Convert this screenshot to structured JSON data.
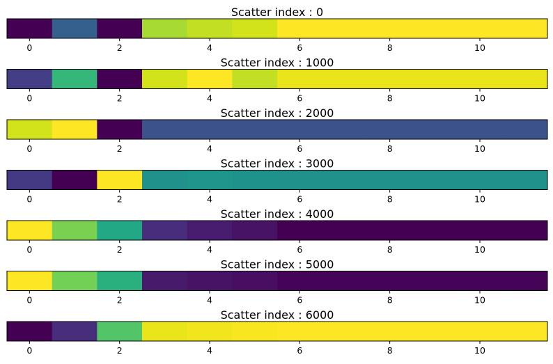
{
  "chart_data": [
    {
      "type": "heatmap",
      "title": "Scatter index : 0",
      "x_ticks": [
        0,
        2,
        4,
        6,
        8,
        10
      ],
      "xlim": [
        -0.5,
        11.5
      ],
      "colors": [
        "#440154",
        "#355f8d",
        "#440154",
        "#a7db34",
        "#c2df23",
        "#d2e21b",
        "#fde725",
        "#fde725",
        "#fde725",
        "#fde725",
        "#fde725",
        "#fde725"
      ]
    },
    {
      "type": "heatmap",
      "title": "Scatter index : 1000",
      "x_ticks": [
        0,
        2,
        4,
        6,
        8,
        10
      ],
      "xlim": [
        -0.5,
        11.5
      ],
      "colors": [
        "#433e85",
        "#35b779",
        "#440154",
        "#d2e21b",
        "#fde725",
        "#c2df23",
        "#eae51a",
        "#eae51a",
        "#eae51a",
        "#eae51a",
        "#eae51a",
        "#eae51a"
      ]
    },
    {
      "type": "heatmap",
      "title": "Scatter index : 2000",
      "x_ticks": [
        0,
        2,
        4,
        6,
        8,
        10
      ],
      "xlim": [
        -0.5,
        11.5
      ],
      "colors": [
        "#d2e21b",
        "#fde725",
        "#440154",
        "#3b528b",
        "#3b528b",
        "#3b528b",
        "#3b528b",
        "#3b528b",
        "#3b528b",
        "#3b528b",
        "#3b528b",
        "#3b528b"
      ]
    },
    {
      "type": "heatmap",
      "title": "Scatter index : 3000",
      "x_ticks": [
        0,
        2,
        4,
        6,
        8,
        10
      ],
      "xlim": [
        -0.5,
        11.5
      ],
      "colors": [
        "#443983",
        "#440154",
        "#fde725",
        "#21918c",
        "#1f968b",
        "#20928c",
        "#21918c",
        "#21918c",
        "#21918c",
        "#21918c",
        "#21918c",
        "#21918c"
      ]
    },
    {
      "type": "heatmap",
      "title": "Scatter index : 4000",
      "x_ticks": [
        0,
        2,
        4,
        6,
        8,
        10
      ],
      "xlim": [
        -0.5,
        11.5
      ],
      "colors": [
        "#fde725",
        "#7ad151",
        "#22a884",
        "#472d7b",
        "#481c6e",
        "#471365",
        "#440154",
        "#440154",
        "#440154",
        "#440154",
        "#440154",
        "#440154"
      ]
    },
    {
      "type": "heatmap",
      "title": "Scatter index : 5000",
      "x_ticks": [
        0,
        2,
        4,
        6,
        8,
        10
      ],
      "xlim": [
        -0.5,
        11.5
      ],
      "colors": [
        "#fde725",
        "#73d056",
        "#2ab07f",
        "#481a6c",
        "#471365",
        "#470e61",
        "#450457",
        "#450457",
        "#450457",
        "#450457",
        "#450457",
        "#450457"
      ]
    },
    {
      "type": "heatmap",
      "title": "Scatter index : 6000",
      "x_ticks": [
        0,
        2,
        4,
        6,
        8,
        10
      ],
      "xlim": [
        -0.5,
        11.5
      ],
      "colors": [
        "#440154",
        "#472d7b",
        "#52c569",
        "#eae51a",
        "#f1e51d",
        "#f8e621",
        "#fde725",
        "#fde725",
        "#fde725",
        "#fde725",
        "#fde725",
        "#fde725"
      ]
    }
  ]
}
